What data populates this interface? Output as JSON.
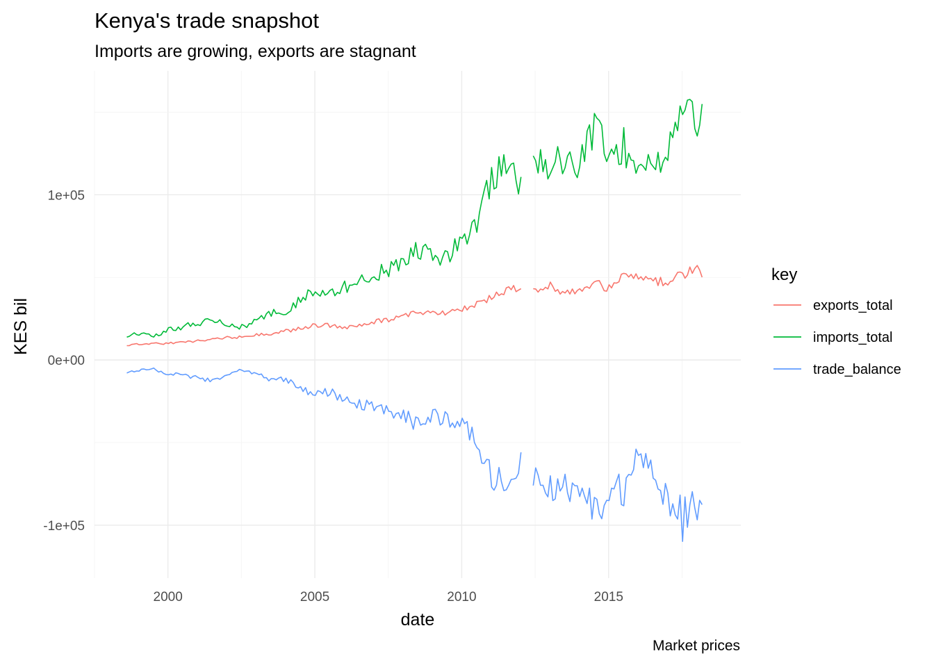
{
  "title": "Kenya's trade snapshot",
  "subtitle": "Imports are growing, exports are stagnant",
  "caption": "Market prices",
  "chart_data": {
    "type": "line",
    "title": "Kenya's trade snapshot",
    "subtitle": "Imports are growing, exports are stagnant",
    "xlabel": "date",
    "ylabel": "KES bil",
    "caption": "Market prices",
    "xlim": [
      1997.5,
      2019.5
    ],
    "ylim": [
      -132000,
      175000
    ],
    "x_ticks": [
      2000,
      2005,
      2010,
      2015
    ],
    "x_tick_labels": [
      "2000",
      "2005",
      "2010",
      "2015"
    ],
    "y_ticks": [
      -100000,
      0,
      100000
    ],
    "y_tick_labels": [
      "-1e+05",
      "0e+00",
      "1e+05"
    ],
    "grid": true,
    "legend": {
      "title": "key",
      "position": "right"
    },
    "gap": [
      2012.05,
      2012.4
    ],
    "series": [
      {
        "name": "exports_total",
        "color": "#F8766D",
        "x": [
          1998.6,
          1999.0,
          1999.5,
          2000.0,
          2000.5,
          2001.0,
          2001.5,
          2002.0,
          2002.5,
          2003.0,
          2003.5,
          2004.0,
          2004.5,
          2005.0,
          2005.5,
          2006.0,
          2006.5,
          2007.0,
          2007.5,
          2008.0,
          2008.5,
          2009.0,
          2009.5,
          2010.0,
          2010.5,
          2011.0,
          2011.5,
          2012.0,
          2012.5,
          2013.0,
          2013.5,
          2014.0,
          2014.5,
          2015.0,
          2015.5,
          2016.0,
          2016.5,
          2017.0,
          2017.5,
          2018.0,
          2018.2
        ],
        "y": [
          9000,
          9500,
          10000,
          10000,
          11000,
          11500,
          12500,
          13500,
          14000,
          15500,
          16000,
          17500,
          19000,
          21000,
          21000,
          19500,
          21500,
          23000,
          24500,
          26000,
          29000,
          28000,
          29000,
          31000,
          34000,
          38000,
          42000,
          44000,
          43000,
          45000,
          41000,
          42000,
          47000,
          43000,
          52000,
          49000,
          47000,
          48000,
          51000,
          55000,
          50000
        ]
      },
      {
        "name": "imports_total",
        "color": "#00BA38",
        "x": [
          1998.6,
          1999.0,
          1999.5,
          2000.0,
          2000.5,
          2001.0,
          2001.5,
          2002.0,
          2002.5,
          2003.0,
          2003.5,
          2004.0,
          2004.5,
          2005.0,
          2005.5,
          2006.0,
          2006.5,
          2007.0,
          2007.5,
          2008.0,
          2008.5,
          2009.0,
          2009.5,
          2010.0,
          2010.5,
          2011.0,
          2011.5,
          2012.0,
          2012.5,
          2013.0,
          2013.5,
          2014.0,
          2014.5,
          2015.0,
          2015.5,
          2016.0,
          2016.5,
          2017.0,
          2017.5,
          2018.0,
          2018.2
        ],
        "y": [
          15000,
          16000,
          15000,
          18000,
          20000,
          22000,
          25000,
          22000,
          20000,
          24000,
          28000,
          30000,
          36000,
          42000,
          40000,
          44000,
          48000,
          52000,
          55000,
          60000,
          68000,
          62000,
          62000,
          72000,
          82000,
          110000,
          120000,
          103000,
          118000,
          120000,
          118000,
          120000,
          138000,
          125000,
          130000,
          110000,
          118000,
          128000,
          148000,
          145000,
          150000
        ]
      },
      {
        "name": "trade_balance",
        "color": "#619CFF",
        "x": [
          1998.6,
          1999.0,
          1999.5,
          2000.0,
          2000.5,
          2001.0,
          2001.5,
          2002.0,
          2002.5,
          2003.0,
          2003.5,
          2004.0,
          2004.5,
          2005.0,
          2005.5,
          2006.0,
          2006.5,
          2007.0,
          2007.5,
          2008.0,
          2008.5,
          2009.0,
          2009.5,
          2010.0,
          2010.5,
          2011.0,
          2011.5,
          2012.0,
          2012.5,
          2013.0,
          2013.5,
          2014.0,
          2014.5,
          2015.0,
          2015.5,
          2016.0,
          2016.5,
          2017.0,
          2017.5,
          2018.0,
          2018.2
        ],
        "y": [
          -7000,
          -6000,
          -5000,
          -9000,
          -9000,
          -11000,
          -13000,
          -10000,
          -6000,
          -8000,
          -12000,
          -12000,
          -16000,
          -21000,
          -19000,
          -24000,
          -27000,
          -27000,
          -31000,
          -34000,
          -39000,
          -34000,
          -35000,
          -40000,
          -48000,
          -69000,
          -77000,
          -60000,
          -75000,
          -75000,
          -78000,
          -78000,
          -92000,
          -83000,
          -78000,
          -60000,
          -70000,
          -80000,
          -97000,
          -90000,
          -100000
        ]
      }
    ]
  }
}
